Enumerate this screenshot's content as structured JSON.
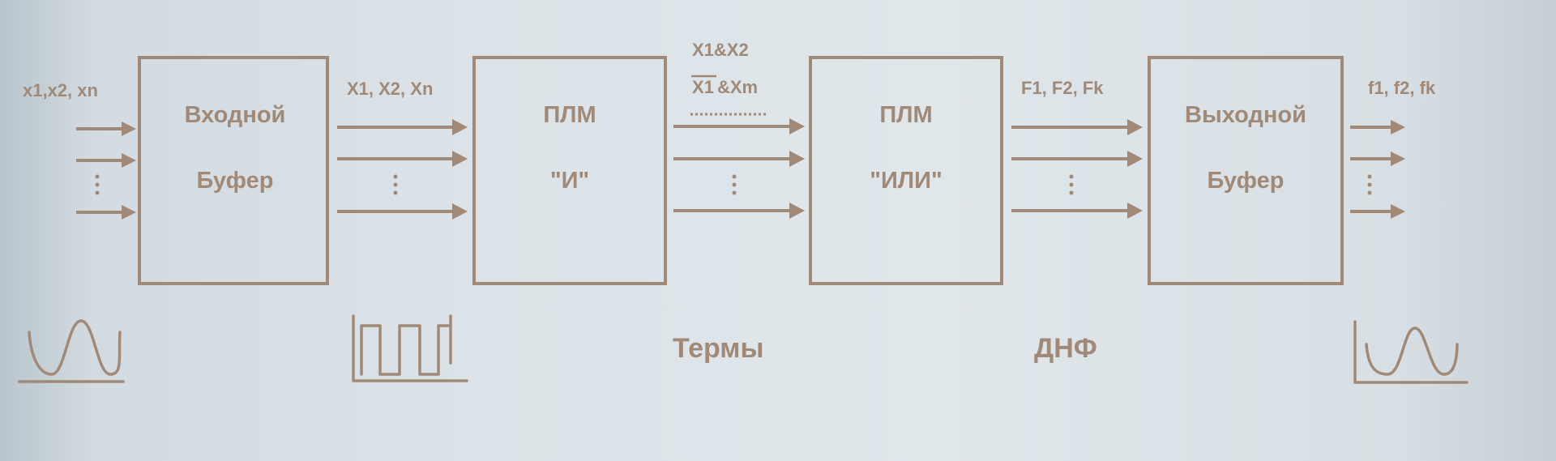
{
  "diagram": {
    "blocks": [
      {
        "id": "input-buffer",
        "line1": "Входной",
        "line2": "Буфер"
      },
      {
        "id": "plm-and",
        "line1": "ПЛМ",
        "line2": "\"И\""
      },
      {
        "id": "plm-or",
        "line1": "ПЛМ",
        "line2": "\"ИЛИ\""
      },
      {
        "id": "output-buffer",
        "line1": "Выходной",
        "line2": "Буфер"
      }
    ],
    "signals": {
      "inputs": "x1,x2, xn",
      "buffered": "X1, X2, Xn",
      "terms_line1": "X1&X2",
      "terms_line2_negated": "X1",
      "terms_line2_rest": "&Xm",
      "functions": "F1, F2, Fk",
      "outputs": "f1, f2, fk"
    },
    "annotations": {
      "terms": "Термы",
      "dnf": "ДНФ"
    },
    "colors": {
      "ink": "#a08977",
      "background": "#dde4e9"
    }
  }
}
